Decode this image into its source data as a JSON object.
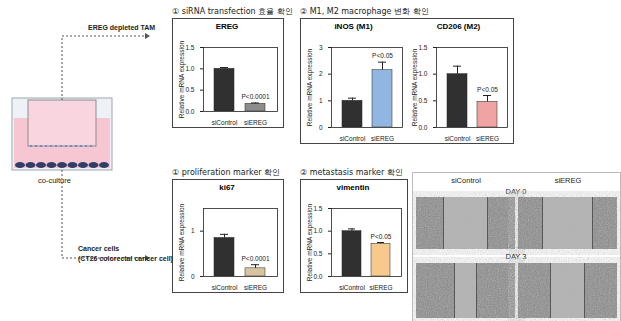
{
  "chart_data": [
    {
      "type": "bar",
      "title": "EREG",
      "y_label": "Relative mRNA expression",
      "categories": [
        "siControl",
        "siEREG"
      ],
      "values": [
        1.0,
        0.18
      ],
      "errors": [
        0.03,
        0.02
      ],
      "colors": [
        "#303030",
        "#8c8c8c"
      ],
      "annotation": "P<0.0001",
      "ylim": [
        0,
        1.5
      ],
      "yticks": [
        {
          "value": 0,
          "label": "0.0"
        },
        {
          "value": 0.5,
          "label": "0.5"
        },
        {
          "value": 1,
          "label": "1.0"
        },
        {
          "value": 1.5,
          "label": "1.5"
        }
      ]
    },
    {
      "type": "bar",
      "title": "iNOS (M1)",
      "y_label": "Relative mRNA expression",
      "categories": [
        "siControl",
        "siEREG"
      ],
      "values": [
        1.0,
        2.15
      ],
      "errors": [
        0.1,
        0.3
      ],
      "colors": [
        "#303030",
        "#92b6e2"
      ],
      "annotation": "P<0.05",
      "ylim": [
        0,
        3
      ],
      "yticks": [
        0,
        1,
        2,
        3
      ]
    },
    {
      "type": "bar",
      "title": "CD206 (M2)",
      "y_label": "Relative mRNA expression",
      "categories": [
        "siControl",
        "siEREG"
      ],
      "values": [
        1.0,
        0.48
      ],
      "errors": [
        0.15,
        0.12
      ],
      "colors": [
        "#303030",
        "#f0a3a3"
      ],
      "annotation": "P<0.05",
      "ylim": [
        0,
        1.5
      ],
      "yticks": [
        {
          "value": 0,
          "label": "0.0"
        },
        {
          "value": 0.5,
          "label": "0.5"
        },
        {
          "value": 1,
          "label": "1.0"
        },
        {
          "value": 1.5,
          "label": "1.5"
        }
      ]
    },
    {
      "type": "bar",
      "title": "ki67",
      "y_label": "Relative mRNA expression",
      "categories": [
        "siControl",
        "siEREG"
      ],
      "values": [
        0.85,
        0.18
      ],
      "errors": [
        0.08,
        0.08
      ],
      "colors": [
        "#303030",
        "#d8c59f"
      ],
      "annotation": "P<0.0001",
      "ylim": [
        0,
        1.5
      ],
      "yticks": [
        0,
        1
      ]
    },
    {
      "type": "bar",
      "title": "vimentin",
      "y_label": "Relative mRNA expression",
      "categories": [
        "siControl",
        "siEREG"
      ],
      "values": [
        1.0,
        0.72
      ],
      "errors": [
        0.05,
        0.03
      ],
      "colors": [
        "#303030",
        "#f7c98c"
      ],
      "annotation": "P<0.05",
      "ylim": [
        0,
        1.5
      ],
      "yticks": [
        {
          "value": 0,
          "label": "0.0"
        },
        {
          "value": 0.5,
          "label": "0.5"
        },
        {
          "value": 1,
          "label": "1.0"
        },
        {
          "value": 1.5,
          "label": "1.5"
        }
      ]
    }
  ],
  "panel_headers": [
    "① siRNA transfection 효율 확인",
    "② M1, M2 macrophage 변화 확인",
    "① proliferation marker 확인",
    "② metastasis marker 확인"
  ],
  "diagram": {
    "tam": "EREG depleted TAM",
    "coculture": "co-culture",
    "cancer": [
      "Cancer cells",
      "(CT26 colorectal cancer cell)"
    ]
  },
  "images": {
    "columns": [
      "siControl",
      "siEREG"
    ],
    "rows": [
      "DAY 0",
      "DAY 3"
    ]
  }
}
